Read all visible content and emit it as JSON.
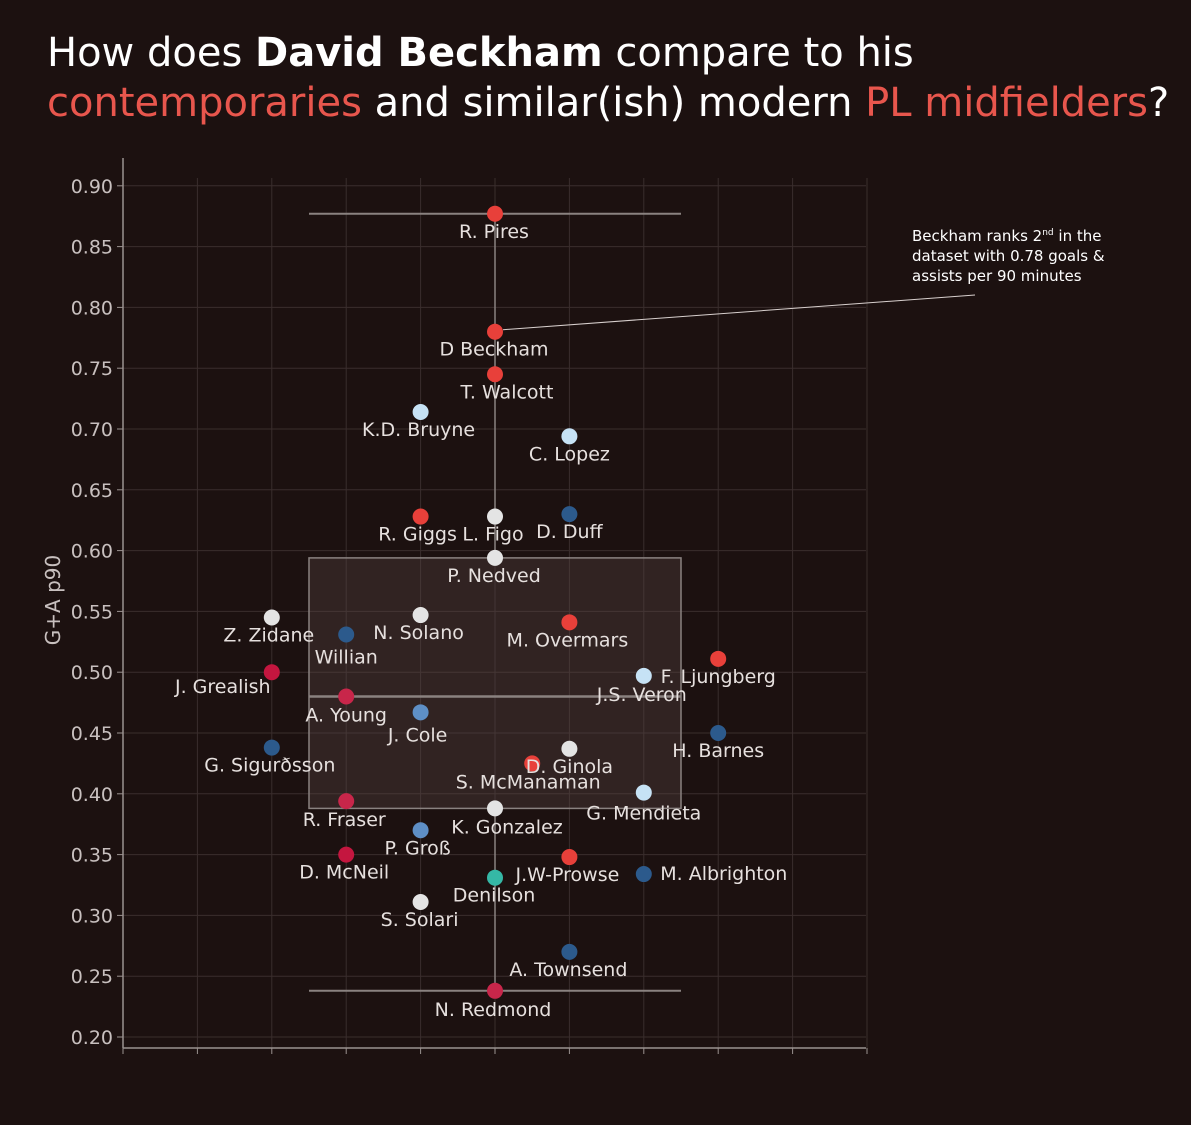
{
  "title": {
    "line1_a": "How does ",
    "line1_b": "David Beckham",
    "line1_c": " compare to his",
    "line2_a": "contemporaries",
    "line2_b": " and similar(ish) modern ",
    "line2_c": "PL midfielders",
    "line2_d": "?"
  },
  "annotation": {
    "text_a": "Beckham ranks 2",
    "text_sup": "nd",
    "text_b": " in the dataset with 0.78 goals & assists per 90 minutes"
  },
  "chart_data": {
    "type": "scatter",
    "ylabel": "G+A p90",
    "ylim": [
      0.2,
      0.92
    ],
    "yticks": [
      0.9,
      0.85,
      0.8,
      0.75,
      0.7,
      0.65,
      0.6,
      0.55,
      0.5,
      0.45,
      0.4,
      0.35,
      0.3,
      0.25,
      0.2
    ],
    "ytick_labels": [
      "0.90",
      "0.85",
      "0.80",
      "0.75",
      "0.70",
      "0.65",
      "0.60",
      "0.55",
      "0.50",
      "0.45",
      "0.40",
      "0.35",
      "0.30",
      "0.25",
      "0.20"
    ],
    "xlim": [
      0,
      10
    ],
    "x_ticks": [
      0,
      1,
      2,
      3,
      4,
      5,
      6,
      7,
      8,
      9,
      10
    ],
    "grid": true,
    "boxplot": {
      "x": 5,
      "min": 0.238,
      "q1": 0.388,
      "median": 0.48,
      "q3": 0.594,
      "max": 0.877
    },
    "colors": {
      "red": "#e8403a",
      "crimson": "#c4163f",
      "dark_blue": "#2c5a8c",
      "mid_blue": "#5e8fc6",
      "light_blue": "#c6e2f5",
      "white": "#e4e4e4",
      "teal": "#35b8a6",
      "pink": "#c8264a"
    },
    "points": [
      {
        "name": "R. Pires",
        "x": 5,
        "y": 0.877,
        "color": "red"
      },
      {
        "name": "D Beckham",
        "x": 5,
        "y": 0.78,
        "color": "red"
      },
      {
        "name": "T. Walcott",
        "x": 5,
        "y": 0.745,
        "color": "red"
      },
      {
        "name": "K.D. Bruyne",
        "x": 4,
        "y": 0.714,
        "color": "light_blue"
      },
      {
        "name": "C. Lopez",
        "x": 6,
        "y": 0.694,
        "color": "light_blue"
      },
      {
        "name": "R. Giggs",
        "x": 4,
        "y": 0.628,
        "color": "red"
      },
      {
        "name": "L. Figo",
        "x": 5,
        "y": 0.628,
        "color": "white"
      },
      {
        "name": "D. Duff",
        "x": 6,
        "y": 0.63,
        "color": "dark_blue"
      },
      {
        "name": "P. Nedved",
        "x": 5,
        "y": 0.594,
        "color": "white"
      },
      {
        "name": "Z. Zidane",
        "x": 2,
        "y": 0.545,
        "color": "white"
      },
      {
        "name": "N. Solano",
        "x": 4,
        "y": 0.547,
        "color": "white"
      },
      {
        "name": "Willian",
        "x": 3,
        "y": 0.531,
        "color": "dark_blue"
      },
      {
        "name": "M. Overmars",
        "x": 6,
        "y": 0.541,
        "color": "red"
      },
      {
        "name": "F. Ljungberg",
        "x": 8,
        "y": 0.511,
        "color": "red"
      },
      {
        "name": "J. Grealish",
        "x": 2,
        "y": 0.5,
        "color": "crimson"
      },
      {
        "name": "J.S. Veron",
        "x": 7,
        "y": 0.497,
        "color": "light_blue"
      },
      {
        "name": "A. Young",
        "x": 3,
        "y": 0.48,
        "color": "pink"
      },
      {
        "name": "J. Cole",
        "x": 4,
        "y": 0.467,
        "color": "mid_blue"
      },
      {
        "name": "H. Barnes",
        "x": 8,
        "y": 0.45,
        "color": "dark_blue"
      },
      {
        "name": "G. Sigurðsson",
        "x": 2,
        "y": 0.438,
        "color": "dark_blue"
      },
      {
        "name": "D. Ginola",
        "x": 6,
        "y": 0.437,
        "color": "white"
      },
      {
        "name": "S. McManaman",
        "x": 5.5,
        "y": 0.425,
        "color": "red"
      },
      {
        "name": "G. Mendieta",
        "x": 7,
        "y": 0.401,
        "color": "light_blue"
      },
      {
        "name": "R. Fraser",
        "x": 3,
        "y": 0.394,
        "color": "pink"
      },
      {
        "name": "K. Gonzalez",
        "x": 5,
        "y": 0.388,
        "color": "white"
      },
      {
        "name": "P. Groß",
        "x": 4,
        "y": 0.37,
        "color": "mid_blue"
      },
      {
        "name": "D. McNeil",
        "x": 3,
        "y": 0.35,
        "color": "crimson"
      },
      {
        "name": "J.W-Prowse",
        "x": 6,
        "y": 0.348,
        "color": "red"
      },
      {
        "name": "M. Albrighton",
        "x": 7,
        "y": 0.334,
        "color": "dark_blue"
      },
      {
        "name": "Denilson",
        "x": 5,
        "y": 0.331,
        "color": "teal"
      },
      {
        "name": "S. Solari",
        "x": 4,
        "y": 0.311,
        "color": "white"
      },
      {
        "name": "A. Townsend",
        "x": 6,
        "y": 0.27,
        "color": "dark_blue"
      },
      {
        "name": "N. Redmond",
        "x": 5,
        "y": 0.238,
        "color": "pink"
      }
    ]
  }
}
